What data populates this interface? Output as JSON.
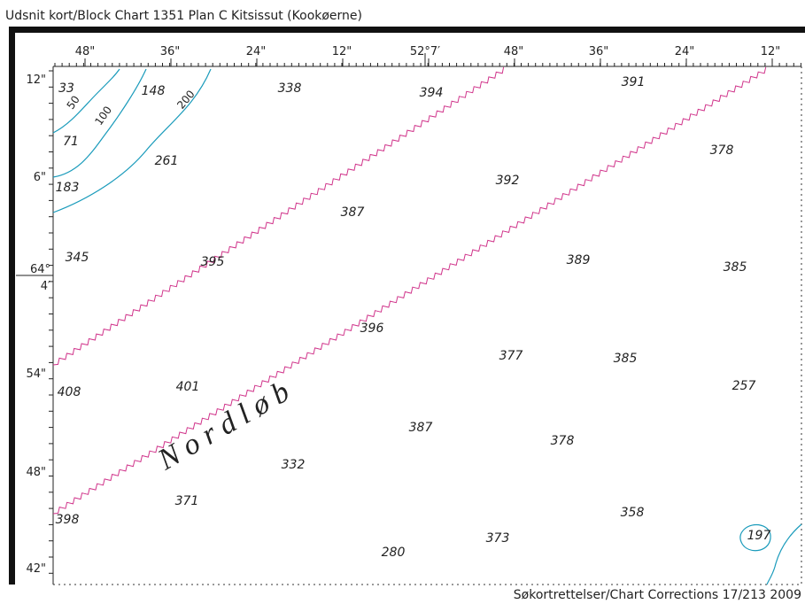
{
  "header": {
    "title": "Udsnit kort/Block Chart 1351 Plan C Kitsissut (Kookøerne)"
  },
  "footer": {
    "text": "Søkortrettelser/Chart Corrections 17/213 2009"
  },
  "top_axis": [
    "48\"",
    "36\"",
    "24\"",
    "12\"",
    "52°7′",
    "48\"",
    "36\"",
    "24\"",
    "12\""
  ],
  "left_axis": [
    "12\"",
    "6\"",
    "64°",
    "4′",
    "54\"",
    "48\"",
    "42\""
  ],
  "soundings": [
    33,
    148,
    338,
    394,
    391,
    71,
    261,
    378,
    183,
    392,
    387,
    345,
    395,
    389,
    385,
    396,
    377,
    385,
    408,
    401,
    257,
    387,
    378,
    332,
    371,
    358,
    398,
    373,
    197,
    280
  ],
  "contour_labels": [
    "50",
    "100",
    "200"
  ],
  "area_label": "N o r d l ø b"
}
